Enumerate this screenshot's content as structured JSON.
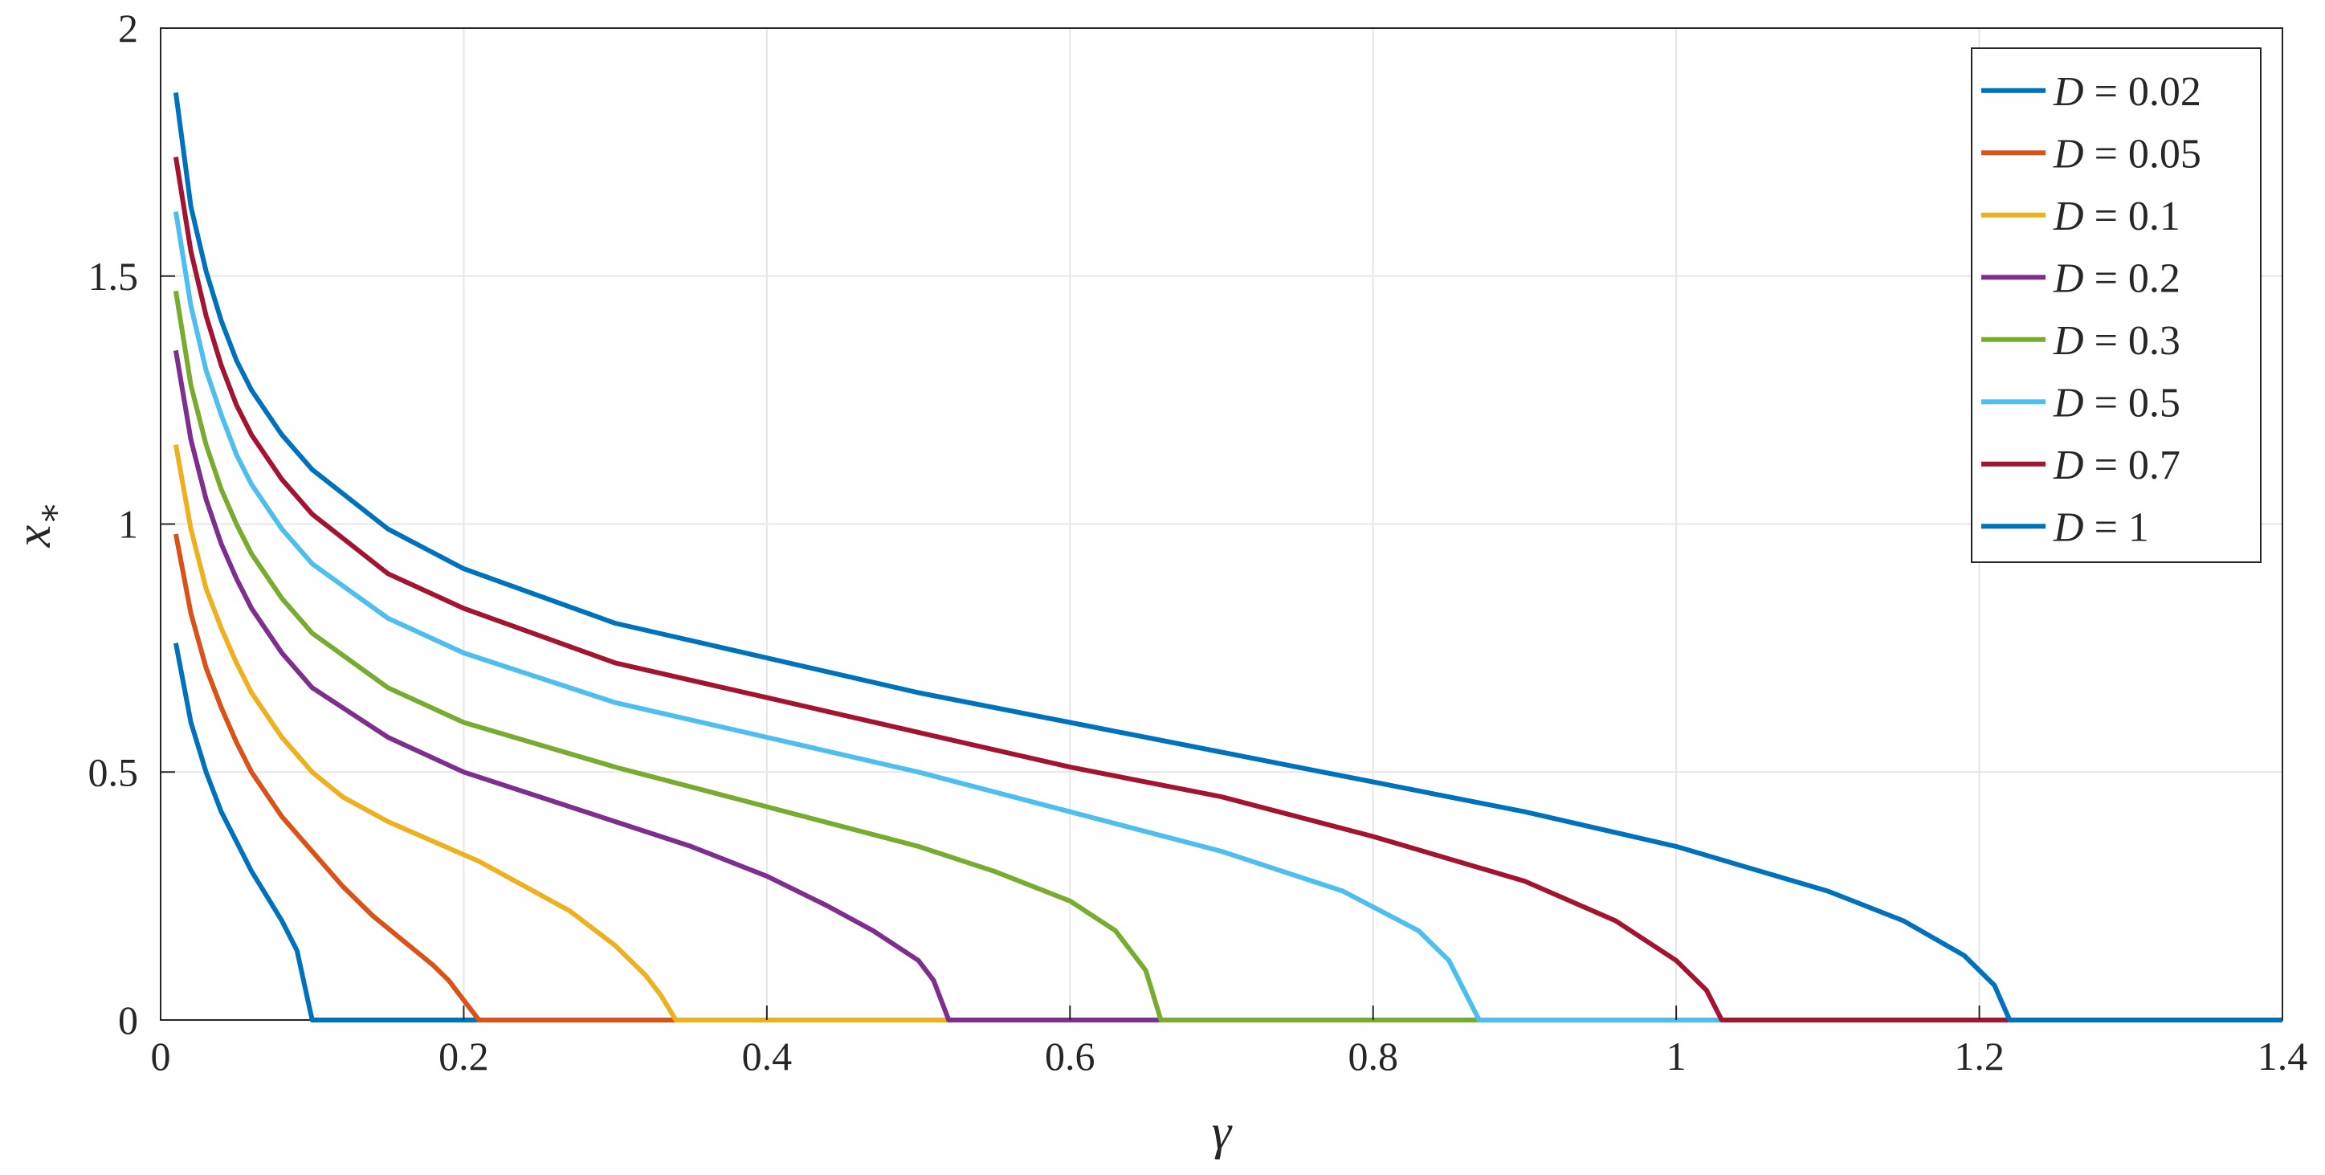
{
  "chart_data": {
    "type": "line",
    "xlabel": "γ",
    "ylabel": "x*",
    "xlim": [
      0,
      1.4
    ],
    "ylim": [
      0,
      2
    ],
    "xticks": [
      "0",
      "0.2",
      "0.4",
      "0.6",
      "0.8",
      "1",
      "1.2",
      "1.4"
    ],
    "yticks": [
      "0",
      "0.5",
      "1",
      "1.5",
      "2"
    ],
    "grid": true,
    "legend_position": "top-right",
    "series": [
      {
        "name": "D = 0.02",
        "color": "#0072BD",
        "points": [
          [
            0.01,
            0.76
          ],
          [
            0.02,
            0.6
          ],
          [
            0.03,
            0.5
          ],
          [
            0.04,
            0.42
          ],
          [
            0.05,
            0.36
          ],
          [
            0.06,
            0.3
          ],
          [
            0.07,
            0.25
          ],
          [
            0.08,
            0.2
          ],
          [
            0.09,
            0.14
          ],
          [
            0.1,
            0.0
          ],
          [
            1.4,
            0.0
          ]
        ]
      },
      {
        "name": "D = 0.05",
        "color": "#D95319",
        "points": [
          [
            0.01,
            0.98
          ],
          [
            0.02,
            0.82
          ],
          [
            0.03,
            0.71
          ],
          [
            0.04,
            0.63
          ],
          [
            0.05,
            0.56
          ],
          [
            0.06,
            0.5
          ],
          [
            0.08,
            0.41
          ],
          [
            0.1,
            0.34
          ],
          [
            0.12,
            0.27
          ],
          [
            0.14,
            0.21
          ],
          [
            0.16,
            0.16
          ],
          [
            0.18,
            0.11
          ],
          [
            0.19,
            0.08
          ],
          [
            0.2,
            0.04
          ],
          [
            0.21,
            0.0
          ],
          [
            1.4,
            0.0
          ]
        ]
      },
      {
        "name": "D = 0.1",
        "color": "#EDB120",
        "points": [
          [
            0.01,
            1.16
          ],
          [
            0.02,
            0.99
          ],
          [
            0.03,
            0.87
          ],
          [
            0.04,
            0.79
          ],
          [
            0.05,
            0.72
          ],
          [
            0.06,
            0.66
          ],
          [
            0.08,
            0.57
          ],
          [
            0.1,
            0.5
          ],
          [
            0.12,
            0.45
          ],
          [
            0.15,
            0.4
          ],
          [
            0.18,
            0.36
          ],
          [
            0.21,
            0.32
          ],
          [
            0.24,
            0.27
          ],
          [
            0.27,
            0.22
          ],
          [
            0.3,
            0.15
          ],
          [
            0.32,
            0.09
          ],
          [
            0.33,
            0.05
          ],
          [
            0.34,
            0.0
          ],
          [
            1.4,
            0.0
          ]
        ]
      },
      {
        "name": "D = 0.2",
        "color": "#7E2F8E",
        "points": [
          [
            0.01,
            1.35
          ],
          [
            0.02,
            1.17
          ],
          [
            0.03,
            1.05
          ],
          [
            0.04,
            0.96
          ],
          [
            0.05,
            0.89
          ],
          [
            0.06,
            0.83
          ],
          [
            0.08,
            0.74
          ],
          [
            0.1,
            0.67
          ],
          [
            0.15,
            0.57
          ],
          [
            0.2,
            0.5
          ],
          [
            0.25,
            0.45
          ],
          [
            0.3,
            0.4
          ],
          [
            0.35,
            0.35
          ],
          [
            0.4,
            0.29
          ],
          [
            0.44,
            0.23
          ],
          [
            0.47,
            0.18
          ],
          [
            0.5,
            0.12
          ],
          [
            0.51,
            0.08
          ],
          [
            0.52,
            0.0
          ],
          [
            1.4,
            0.0
          ]
        ]
      },
      {
        "name": "D = 0.3",
        "color": "#77AC30",
        "points": [
          [
            0.01,
            1.47
          ],
          [
            0.02,
            1.28
          ],
          [
            0.03,
            1.16
          ],
          [
            0.04,
            1.07
          ],
          [
            0.05,
            1.0
          ],
          [
            0.06,
            0.94
          ],
          [
            0.08,
            0.85
          ],
          [
            0.1,
            0.78
          ],
          [
            0.15,
            0.67
          ],
          [
            0.2,
            0.6
          ],
          [
            0.3,
            0.51
          ],
          [
            0.4,
            0.43
          ],
          [
            0.5,
            0.35
          ],
          [
            0.55,
            0.3
          ],
          [
            0.6,
            0.24
          ],
          [
            0.63,
            0.18
          ],
          [
            0.65,
            0.1
          ],
          [
            0.66,
            0.0
          ],
          [
            1.4,
            0.0
          ]
        ]
      },
      {
        "name": "D = 0.5",
        "color": "#4DBEEE",
        "points": [
          [
            0.01,
            1.63
          ],
          [
            0.02,
            1.44
          ],
          [
            0.03,
            1.31
          ],
          [
            0.04,
            1.22
          ],
          [
            0.05,
            1.14
          ],
          [
            0.06,
            1.08
          ],
          [
            0.08,
            0.99
          ],
          [
            0.1,
            0.92
          ],
          [
            0.15,
            0.81
          ],
          [
            0.2,
            0.74
          ],
          [
            0.3,
            0.64
          ],
          [
            0.4,
            0.57
          ],
          [
            0.5,
            0.5
          ],
          [
            0.6,
            0.42
          ],
          [
            0.7,
            0.34
          ],
          [
            0.78,
            0.26
          ],
          [
            0.83,
            0.18
          ],
          [
            0.85,
            0.12
          ],
          [
            0.86,
            0.06
          ],
          [
            0.87,
            0.0
          ],
          [
            1.4,
            0.0
          ]
        ]
      },
      {
        "name": "D = 0.7",
        "color": "#A2142F",
        "points": [
          [
            0.01,
            1.74
          ],
          [
            0.02,
            1.55
          ],
          [
            0.03,
            1.42
          ],
          [
            0.04,
            1.32
          ],
          [
            0.05,
            1.24
          ],
          [
            0.06,
            1.18
          ],
          [
            0.08,
            1.09
          ],
          [
            0.1,
            1.02
          ],
          [
            0.15,
            0.9
          ],
          [
            0.2,
            0.83
          ],
          [
            0.3,
            0.72
          ],
          [
            0.4,
            0.65
          ],
          [
            0.5,
            0.58
          ],
          [
            0.6,
            0.51
          ],
          [
            0.7,
            0.45
          ],
          [
            0.8,
            0.37
          ],
          [
            0.9,
            0.28
          ],
          [
            0.96,
            0.2
          ],
          [
            1.0,
            0.12
          ],
          [
            1.02,
            0.06
          ],
          [
            1.03,
            0.0
          ],
          [
            1.4,
            0.0
          ]
        ]
      },
      {
        "name": "D = 1",
        "color": "#0072BD",
        "points": [
          [
            0.01,
            1.87
          ],
          [
            0.02,
            1.64
          ],
          [
            0.03,
            1.51
          ],
          [
            0.04,
            1.41
          ],
          [
            0.05,
            1.33
          ],
          [
            0.06,
            1.27
          ],
          [
            0.08,
            1.18
          ],
          [
            0.1,
            1.11
          ],
          [
            0.15,
            0.99
          ],
          [
            0.2,
            0.91
          ],
          [
            0.3,
            0.8
          ],
          [
            0.4,
            0.73
          ],
          [
            0.5,
            0.66
          ],
          [
            0.6,
            0.6
          ],
          [
            0.7,
            0.54
          ],
          [
            0.8,
            0.48
          ],
          [
            0.9,
            0.42
          ],
          [
            1.0,
            0.35
          ],
          [
            1.1,
            0.26
          ],
          [
            1.15,
            0.2
          ],
          [
            1.19,
            0.13
          ],
          [
            1.21,
            0.07
          ],
          [
            1.22,
            0.0
          ],
          [
            1.4,
            0.0
          ]
        ]
      }
    ]
  }
}
